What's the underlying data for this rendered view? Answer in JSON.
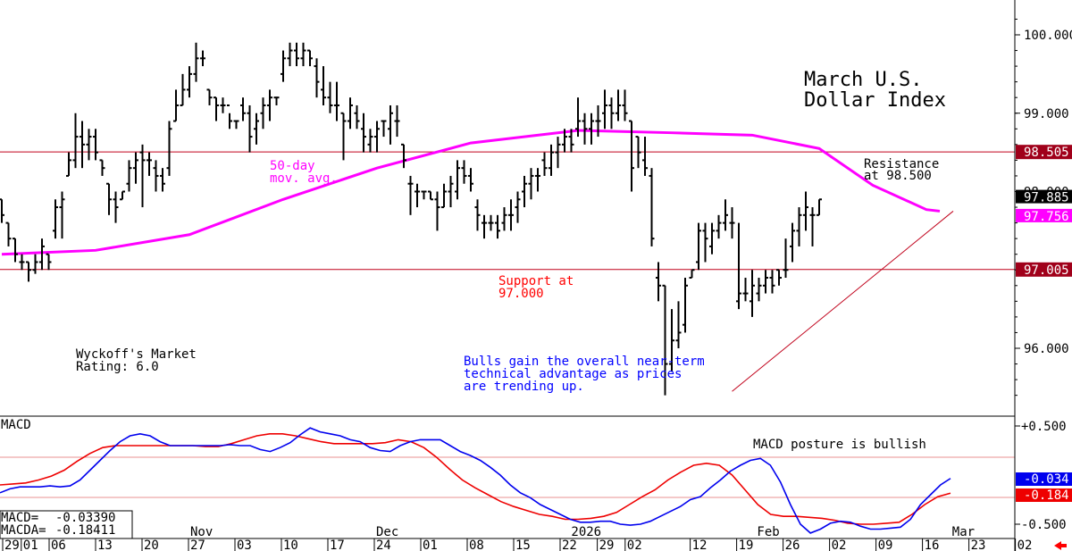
{
  "chart_data": [
    {
      "type": "ohlc",
      "title_lines": [
        "March U.S.",
        "Dollar Index"
      ],
      "y_ticks": [
        "100.000",
        "99.000",
        "98.000",
        "97.000",
        "96.000"
      ],
      "ylim": [
        95.2,
        100.5
      ],
      "x_month_labels": [
        {
          "label": "Nov",
          "bar": 20
        },
        {
          "label": "Dec",
          "bar": 40
        },
        {
          "label": "2026",
          "bar": 61
        },
        {
          "label": "Feb",
          "bar": 81
        },
        {
          "label": "Mar",
          "bar": 102
        }
      ],
      "x_day_labels": [
        {
          "label": "29",
          "bar": 0
        },
        {
          "label": "01",
          "bar": 2
        },
        {
          "label": "06",
          "bar": 5
        },
        {
          "label": "13",
          "bar": 10
        },
        {
          "label": "20",
          "bar": 15
        },
        {
          "label": "27",
          "bar": 20
        },
        {
          "label": "03",
          "bar": 25
        },
        {
          "label": "10",
          "bar": 30
        },
        {
          "label": "17",
          "bar": 35
        },
        {
          "label": "24",
          "bar": 40
        },
        {
          "label": "01",
          "bar": 45
        },
        {
          "label": "08",
          "bar": 50
        },
        {
          "label": "15",
          "bar": 55
        },
        {
          "label": "22",
          "bar": 60
        },
        {
          "label": "29",
          "bar": 64
        },
        {
          "label": "02",
          "bar": 67
        },
        {
          "label": "12",
          "bar": 74
        },
        {
          "label": "19",
          "bar": 79
        },
        {
          "label": "26",
          "bar": 84
        },
        {
          "label": "02",
          "bar": 89
        },
        {
          "label": "09",
          "bar": 94
        },
        {
          "label": "16",
          "bar": 99
        },
        {
          "label": "23",
          "bar": 104
        },
        {
          "label": "02",
          "bar": 109
        }
      ],
      "bars": [
        [
          97.9,
          97.9,
          97.6,
          97.7
        ],
        [
          97.6,
          97.6,
          97.3,
          97.4
        ],
        [
          97.4,
          97.4,
          97.1,
          97.2
        ],
        [
          97.1,
          97.2,
          97.0,
          97.1
        ],
        [
          97.1,
          97.1,
          96.85,
          97.0
        ],
        [
          97.0,
          97.2,
          96.95,
          97.1
        ],
        [
          97.1,
          97.4,
          97.0,
          97.3
        ],
        [
          97.2,
          97.2,
          97.0,
          97.1
        ],
        [
          97.5,
          97.9,
          97.4,
          97.8
        ],
        [
          97.8,
          98.0,
          97.4,
          97.9
        ],
        [
          98.2,
          98.5,
          98.2,
          98.4
        ],
        [
          98.4,
          99.0,
          98.3,
          98.7
        ],
        [
          98.7,
          98.9,
          98.3,
          98.6
        ],
        [
          98.6,
          98.8,
          98.4,
          98.7
        ],
        [
          98.7,
          98.8,
          98.4,
          98.5
        ],
        [
          98.4,
          98.4,
          98.2,
          98.3
        ],
        [
          98.1,
          98.1,
          97.7,
          97.9
        ],
        [
          97.9,
          98.0,
          97.6,
          97.8
        ],
        [
          97.9,
          98.0,
          97.9,
          98.0
        ],
        [
          98.1,
          98.4,
          98.0,
          98.3
        ],
        [
          98.3,
          98.5,
          98.1,
          98.4
        ],
        [
          98.5,
          98.6,
          97.8,
          98.4
        ],
        [
          98.4,
          98.5,
          98.2,
          98.4
        ],
        [
          98.3,
          98.4,
          98.0,
          98.2
        ],
        [
          98.2,
          98.3,
          98.0,
          98.1
        ],
        [
          98.3,
          98.9,
          98.2,
          98.8
        ],
        [
          98.9,
          99.3,
          98.9,
          99.1
        ],
        [
          99.1,
          99.5,
          99.1,
          99.3
        ],
        [
          99.3,
          99.6,
          99.2,
          99.5
        ],
        [
          99.5,
          99.9,
          99.4,
          99.7
        ],
        [
          99.7,
          99.8,
          99.6,
          99.7
        ],
        [
          99.3,
          99.3,
          99.1,
          99.2
        ],
        [
          99.2,
          99.2,
          98.9,
          99.1
        ],
        [
          99.1,
          99.2,
          99.0,
          99.1
        ],
        [
          99.1,
          99.0,
          98.8,
          98.9
        ],
        [
          98.9,
          98.9,
          98.8,
          98.9
        ],
        [
          99.1,
          99.2,
          98.9,
          99.0
        ],
        [
          99.0,
          99.1,
          98.5,
          98.7
        ],
        [
          98.8,
          99.0,
          98.6,
          98.9
        ],
        [
          99.0,
          99.2,
          98.8,
          99.1
        ],
        [
          99.1,
          99.3,
          98.9,
          99.2
        ],
        [
          99.2,
          99.2,
          99.1,
          99.2
        ],
        [
          99.5,
          99.8,
          99.4,
          99.7
        ],
        [
          99.7,
          99.9,
          99.6,
          99.8
        ],
        [
          99.8,
          99.9,
          99.6,
          99.7
        ],
        [
          99.7,
          99.9,
          99.6,
          99.8
        ],
        [
          99.8,
          99.8,
          99.6,
          99.7
        ],
        [
          99.6,
          99.7,
          99.2,
          99.4
        ],
        [
          99.3,
          99.6,
          99.1,
          99.2
        ],
        [
          99.2,
          99.4,
          99.0,
          99.1
        ],
        [
          99.1,
          99.4,
          98.9,
          99.1
        ],
        [
          99.0,
          99.0,
          98.4,
          98.9
        ],
        [
          98.9,
          99.2,
          98.8,
          99.1
        ],
        [
          99.0,
          99.1,
          98.8,
          98.9
        ],
        [
          98.8,
          99.0,
          98.5,
          98.7
        ],
        [
          98.6,
          98.8,
          98.5,
          98.7
        ],
        [
          98.7,
          98.9,
          98.5,
          98.8
        ],
        [
          98.9,
          98.9,
          98.7,
          98.9
        ],
        [
          98.8,
          99.1,
          98.6,
          99.0
        ],
        [
          98.9,
          99.1,
          98.7,
          98.9
        ],
        [
          98.6,
          98.6,
          98.3,
          98.4
        ],
        [
          98.1,
          98.2,
          97.7,
          98.1
        ],
        [
          98.0,
          98.1,
          97.8,
          98.0
        ],
        [
          98.0,
          98.0,
          97.9,
          98.0
        ],
        [
          98.0,
          98.0,
          97.9,
          97.9
        ],
        [
          97.9,
          98.0,
          97.5,
          97.8
        ],
        [
          97.8,
          98.1,
          97.8,
          98.0
        ],
        [
          98.0,
          98.2,
          97.8,
          98.1
        ],
        [
          98.0,
          98.4,
          97.9,
          98.3
        ],
        [
          98.3,
          98.4,
          98.1,
          98.2
        ],
        [
          98.2,
          98.3,
          98.0,
          98.1
        ],
        [
          97.8,
          97.9,
          97.5,
          97.7
        ],
        [
          97.6,
          97.7,
          97.4,
          97.6
        ],
        [
          97.6,
          97.7,
          97.5,
          97.6
        ],
        [
          97.6,
          97.7,
          97.4,
          97.5
        ],
        [
          97.6,
          97.8,
          97.5,
          97.7
        ],
        [
          97.7,
          97.9,
          97.5,
          97.7
        ],
        [
          97.8,
          98.0,
          97.6,
          97.9
        ],
        [
          98.0,
          98.2,
          97.8,
          98.1
        ],
        [
          98.1,
          98.3,
          97.9,
          98.2
        ],
        [
          98.2,
          98.3,
          98.0,
          98.2
        ],
        [
          98.4,
          98.5,
          98.2,
          98.3
        ],
        [
          98.3,
          98.6,
          98.2,
          98.5
        ],
        [
          98.5,
          98.7,
          98.3,
          98.6
        ],
        [
          98.6,
          98.8,
          98.5,
          98.7
        ],
        [
          98.7,
          98.8,
          98.5,
          98.6
        ],
        [
          98.8,
          99.2,
          98.7,
          98.9
        ],
        [
          98.9,
          99.0,
          98.6,
          98.8
        ],
        [
          98.8,
          99.0,
          98.6,
          98.9
        ],
        [
          98.9,
          99.1,
          98.7,
          98.9
        ],
        [
          99.0,
          99.3,
          98.8,
          99.1
        ],
        [
          99.1,
          99.2,
          98.8,
          99.0
        ],
        [
          99.0,
          99.3,
          98.9,
          99.1
        ],
        [
          99.1,
          99.3,
          98.9,
          99.0
        ],
        [
          98.9,
          98.9,
          98.0,
          98.3
        ],
        [
          98.7,
          98.7,
          98.3,
          98.5
        ],
        [
          98.4,
          98.7,
          98.2,
          98.3
        ],
        [
          98.2,
          98.3,
          97.3,
          97.4
        ],
        [
          96.9,
          97.1,
          96.6,
          96.8
        ],
        [
          96.8,
          96.8,
          95.4,
          95.8
        ],
        [
          95.8,
          96.5,
          95.7,
          96.1
        ],
        [
          96.1,
          96.6,
          96.0,
          96.2
        ],
        [
          96.3,
          96.9,
          96.2,
          96.8
        ],
        [
          96.9,
          97.0,
          96.9,
          97.0
        ],
        [
          97.1,
          97.6,
          97.0,
          97.5
        ],
        [
          97.5,
          97.6,
          97.1,
          97.4
        ],
        [
          97.3,
          97.6,
          97.2,
          97.5
        ],
        [
          97.5,
          97.7,
          97.4,
          97.6
        ],
        [
          97.6,
          97.9,
          97.5,
          97.7
        ],
        [
          97.6,
          97.8,
          97.4,
          97.6
        ],
        [
          96.6,
          97.6,
          96.5,
          96.7
        ],
        [
          96.7,
          96.9,
          96.6,
          96.7
        ],
        [
          96.6,
          97.0,
          96.4,
          96.8
        ],
        [
          96.7,
          96.9,
          96.6,
          96.8
        ],
        [
          96.8,
          97.0,
          96.7,
          96.9
        ],
        [
          96.9,
          97.0,
          96.7,
          96.8
        ],
        [
          97.0,
          97.0,
          96.8,
          96.9
        ],
        [
          97.0,
          97.4,
          96.9,
          97.0
        ],
        [
          97.3,
          97.6,
          97.1,
          97.5
        ],
        [
          97.5,
          97.8,
          97.3,
          97.7
        ],
        [
          97.7,
          98.0,
          97.5,
          97.8
        ],
        [
          97.7,
          97.8,
          97.3,
          97.7
        ],
        [
          97.7,
          97.9,
          97.7,
          97.9
        ]
      ],
      "moving_average": {
        "label_lines": [
          "50-day",
          "mov. avg."
        ],
        "points": [
          [
            0,
            97.2
          ],
          [
            14,
            97.25
          ],
          [
            28,
            97.45
          ],
          [
            42,
            97.9
          ],
          [
            56,
            98.3
          ],
          [
            70,
            98.62
          ],
          [
            86,
            98.78
          ],
          [
            100,
            98.75
          ],
          [
            112,
            98.72
          ],
          [
            122,
            98.55
          ],
          [
            130,
            98.08
          ],
          [
            138,
            97.77
          ],
          [
            140,
            97.75
          ]
        ]
      },
      "horizontal_lines": [
        {
          "name": "resistance",
          "value": 98.505,
          "label_lines": [
            "Resistance",
            "at 98.500"
          ],
          "tag": "98.505"
        },
        {
          "name": "support",
          "value": 97.005,
          "label_lines": [
            "Support at",
            "97.000"
          ],
          "tag": "97.005"
        }
      ],
      "trendline": {
        "from": [
          109,
          95.45
        ],
        "to": [
          142,
          97.75
        ]
      },
      "price_tags": [
        {
          "text": "97.885",
          "value": 97.885,
          "color": "#000000"
        },
        {
          "text": "97.756",
          "value": 97.756,
          "color": "#ff00ff"
        }
      ],
      "annotations": {
        "rating_lines": [
          "Wyckoff's Market",
          "Rating: 6.0"
        ],
        "commentary_lines": [
          "Bulls gain the overall near-term",
          "technical advantage as prices",
          "are trending up."
        ]
      }
    },
    {
      "type": "line",
      "title": "MACD",
      "y_ticks": [
        "+0.500",
        "-0.500"
      ],
      "ylim": [
        -0.7,
        0.6
      ],
      "macd": [
        -0.18,
        -0.14,
        -0.12,
        -0.12,
        -0.12,
        -0.11,
        -0.12,
        -0.11,
        -0.05,
        0.05,
        0.15,
        0.25,
        0.34,
        0.4,
        0.42,
        0.4,
        0.34,
        0.3,
        0.3,
        0.3,
        0.3,
        0.3,
        0.3,
        0.31,
        0.3,
        0.3,
        0.26,
        0.24,
        0.28,
        0.33,
        0.41,
        0.48,
        0.44,
        0.42,
        0.4,
        0.36,
        0.34,
        0.28,
        0.25,
        0.24,
        0.3,
        0.34,
        0.36,
        0.36,
        0.36,
        0.3,
        0.24,
        0.2,
        0.15,
        0.08,
        0.0,
        -0.1,
        -0.18,
        -0.23,
        -0.3,
        -0.35,
        -0.4,
        -0.45,
        -0.48,
        -0.48,
        -0.47,
        -0.47,
        -0.5,
        -0.51,
        -0.5,
        -0.47,
        -0.42,
        -0.37,
        -0.32,
        -0.25,
        -0.22,
        -0.13,
        -0.05,
        0.04,
        0.1,
        0.15,
        0.17,
        0.1,
        -0.07,
        -0.3,
        -0.5,
        -0.59,
        -0.55,
        -0.49,
        -0.47,
        -0.48,
        -0.52,
        -0.55,
        -0.55,
        -0.54,
        -0.53,
        -0.45,
        -0.3,
        -0.2,
        -0.1,
        -0.034
      ],
      "macda": [
        -0.1,
        -0.09,
        -0.08,
        -0.05,
        -0.01,
        0.05,
        0.14,
        0.22,
        0.28,
        0.3,
        0.3,
        0.3,
        0.3,
        0.3,
        0.3,
        0.3,
        0.29,
        0.29,
        0.32,
        0.36,
        0.4,
        0.42,
        0.42,
        0.4,
        0.37,
        0.34,
        0.32,
        0.32,
        0.32,
        0.32,
        0.33,
        0.36,
        0.34,
        0.28,
        0.18,
        0.06,
        -0.05,
        -0.13,
        -0.2,
        -0.27,
        -0.32,
        -0.36,
        -0.4,
        -0.42,
        -0.45,
        -0.45,
        -0.44,
        -0.42,
        -0.38,
        -0.3,
        -0.22,
        -0.15,
        -0.05,
        0.03,
        0.1,
        0.12,
        0.1,
        0.0,
        -0.15,
        -0.3,
        -0.4,
        -0.42,
        -0.42,
        -0.43,
        -0.44,
        -0.46,
        -0.49,
        -0.5,
        -0.5,
        -0.49,
        -0.48,
        -0.4,
        -0.3,
        -0.22,
        -0.184
      ],
      "macd_label": "MACD=",
      "macd_value": "-0.03390",
      "macda_label": "MACDA=",
      "macda_value": "-0.18411",
      "tags": [
        "-0.034",
        "-0.184"
      ],
      "annotation": "MACD posture is bullish"
    }
  ]
}
